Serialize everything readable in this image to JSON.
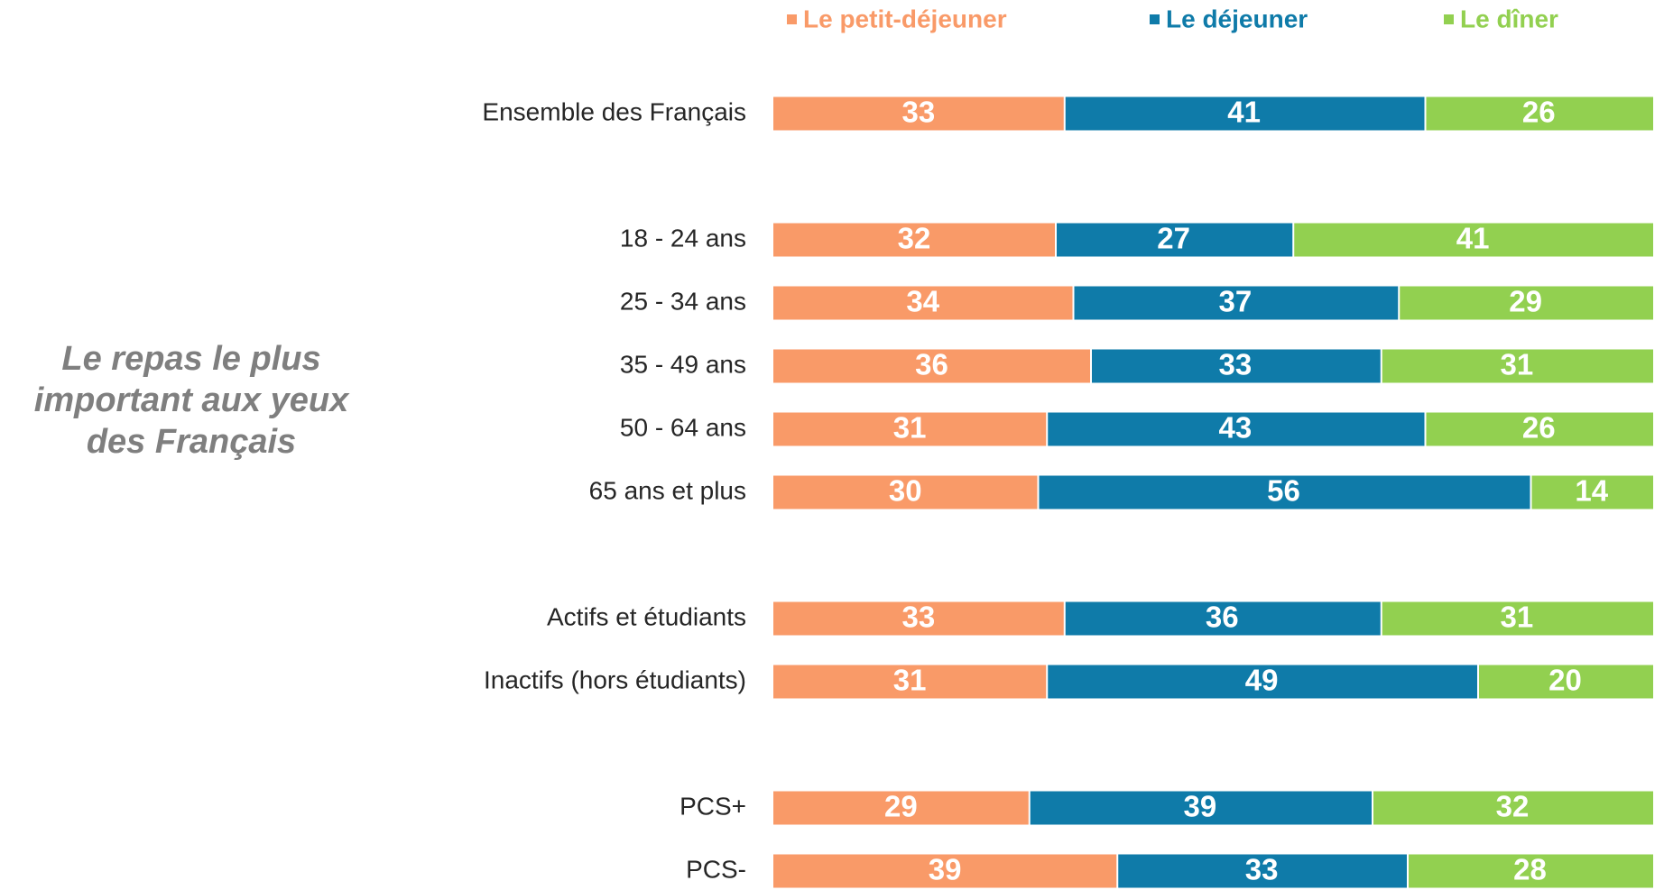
{
  "chart_data": {
    "type": "stacked-bar-horizontal",
    "title": "Le repas le plus important aux yeux des Français",
    "categories": [
      "Ensemble des Français",
      "18 - 24 ans",
      "25 - 34 ans",
      "35 - 49 ans",
      "50 - 64 ans",
      "65 ans et plus",
      "Actifs et étudiants",
      "Inactifs (hors étudiants)",
      "PCS+",
      "PCS-"
    ],
    "series": [
      {
        "name": "Le petit-déjeuner",
        "color": "#f99a68",
        "values": [
          33,
          32,
          34,
          36,
          31,
          30,
          33,
          31,
          29,
          39
        ]
      },
      {
        "name": "Le déjeuner",
        "color": "#0f7ba9",
        "values": [
          41,
          27,
          37,
          33,
          43,
          56,
          36,
          49,
          39,
          33
        ]
      },
      {
        "name": "Le dîner",
        "color": "#92d050",
        "values": [
          26,
          41,
          29,
          31,
          26,
          14,
          31,
          20,
          32,
          28
        ]
      }
    ],
    "xlim": [
      0,
      100
    ]
  }
}
